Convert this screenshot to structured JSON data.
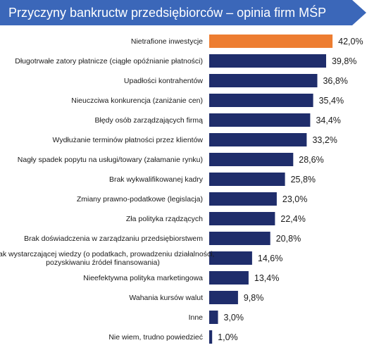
{
  "title": "Przyczyny bankructw przedsiębiorców – opinia firm MŚP",
  "colors": {
    "banner": "#3b67b9",
    "highlight": "#ed7d31",
    "bar": "#1f2d6b"
  },
  "chart_data": {
    "type": "bar",
    "orientation": "horizontal",
    "categories": [
      "Nietrafione inwestycje",
      "Długotrwałe zatory płatnicze (ciągłe opóźnianie płatności)",
      "Upadłości kontrahentów",
      "Nieuczciwa konkurencja (zaniżanie cen)",
      "Błędy osób zarządzających firmą",
      "Wydłużanie terminów płatności przez klientów",
      "Nagły spadek popytu na usługi/towary (załamanie rynku)",
      "Brak wykwalifikowanej kadry",
      "Zmiany prawno-podatkowe (legislacja)",
      "Zła polityka rządzących",
      "Brak doświadczenia w zarządzaniu przedsiębiorstwem",
      "Brak wystarczającej wiedzy (o podatkach, prowadzeniu działalności, pozyskiwaniu źródeł finansowania)",
      "Nieefektywna polityka marketingowa",
      "Wahania kursów walut",
      "Inne",
      "Nie wiem, trudno powiedzieć"
    ],
    "values": [
      42.0,
      39.8,
      36.8,
      35.4,
      34.4,
      33.2,
      28.6,
      25.8,
      23.0,
      22.4,
      20.8,
      14.6,
      13.4,
      9.8,
      3.0,
      1.0
    ],
    "value_labels": [
      "42,0%",
      "39,8%",
      "36,8%",
      "35,4%",
      "34,4%",
      "33,2%",
      "28,6%",
      "25,8%",
      "23,0%",
      "22,4%",
      "20,8%",
      "14,6%",
      "13,4%",
      "9,8%",
      "3,0%",
      "1,0%"
    ],
    "highlight_index": 0,
    "grid": false,
    "legend": false
  }
}
